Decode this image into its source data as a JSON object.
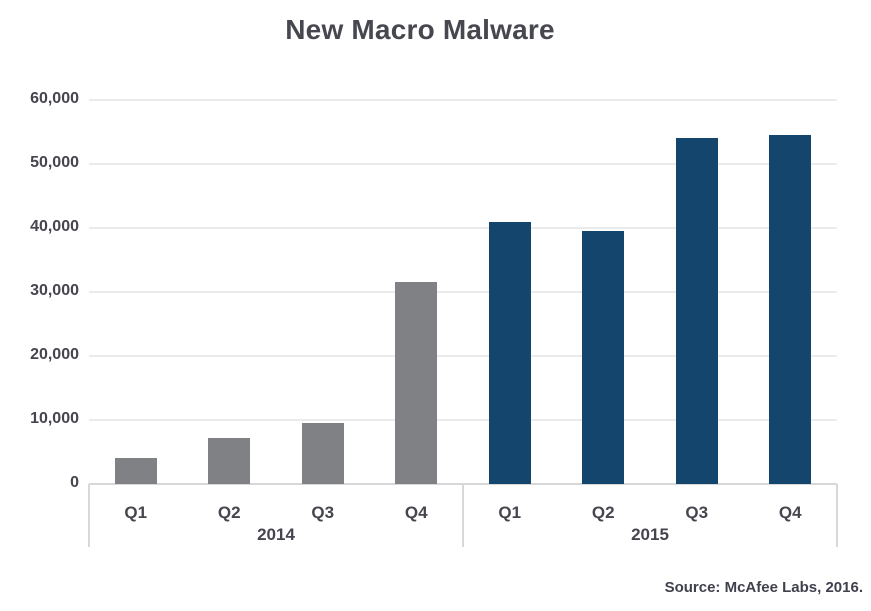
{
  "title": "New Macro Malware",
  "source": "Source: McAfee Labs, 2016.",
  "colors": {
    "bar_2014": "#808185",
    "bar_2015": "#13456D",
    "gridline": "#ebebeb",
    "axis": "#d8d8da",
    "text": "#45454d"
  },
  "chart_data": {
    "type": "bar",
    "title": "New Macro Malware",
    "xlabel": "",
    "ylabel": "",
    "ylim": [
      0,
      60000
    ],
    "ytick_interval": 10000,
    "ytick_labels": [
      "0",
      "10,000",
      "20,000",
      "30,000",
      "40,000",
      "50,000",
      "60,000"
    ],
    "grid": true,
    "legend_position": "none",
    "groups": [
      {
        "year": "2014",
        "categories": [
          "Q1",
          "Q2",
          "Q3",
          "Q4"
        ],
        "values": [
          4000,
          7200,
          9500,
          31500
        ],
        "color": "#808185"
      },
      {
        "year": "2015",
        "categories": [
          "Q1",
          "Q2",
          "Q3",
          "Q4"
        ],
        "values": [
          41000,
          39500,
          54000,
          54500
        ],
        "color": "#13456D"
      }
    ],
    "source": "Source: McAfee Labs, 2016."
  }
}
